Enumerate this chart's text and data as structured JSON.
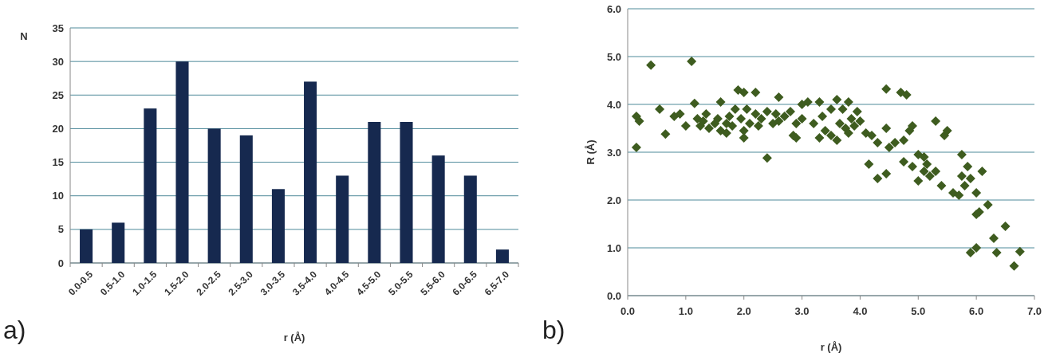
{
  "chart_data": [
    {
      "type": "bar",
      "categories": [
        "0.0-0.5",
        "0.5-1.0",
        "1.0-1.5",
        "1.5-2.0",
        "2.0-2.5",
        "2.5-3.0",
        "3.0-3.5",
        "3.5-4.0",
        "4.0-4.5",
        "4.5-5.0",
        "5.0-5.5",
        "5.5-6.0",
        "6.0-6.5",
        "6.5-7.0"
      ],
      "values": [
        5,
        6,
        23,
        30,
        20,
        19,
        11,
        27,
        13,
        21,
        21,
        16,
        13,
        2
      ],
      "color": "#16294f",
      "ylim": [
        0,
        35
      ],
      "yticks": [
        0,
        5,
        10,
        15,
        20,
        25,
        30,
        35
      ],
      "grid": "y",
      "xlabel": "r (Å)",
      "ylabel": "N",
      "annotations": [
        "a)"
      ]
    },
    {
      "type": "scatter",
      "marker": "diamond",
      "color": "#3e5c1f",
      "xlim": [
        0,
        7
      ],
      "ylim": [
        0,
        6
      ],
      "xticks": [
        {
          "value": 0,
          "label": "0.0"
        },
        {
          "value": 1,
          "label": "1.0"
        },
        {
          "value": 2,
          "label": "2.0"
        },
        {
          "value": 3,
          "label": "3.0"
        },
        {
          "value": 4,
          "label": "4.0"
        },
        {
          "value": 5,
          "label": "5.0"
        },
        {
          "value": 6,
          "label": "6.0"
        },
        {
          "value": 7,
          "label": "7.0"
        }
      ],
      "yticks": [
        {
          "value": 0,
          "label": "0.0"
        },
        {
          "value": 1,
          "label": "1.0"
        },
        {
          "value": 2,
          "label": "2.0"
        },
        {
          "value": 3,
          "label": "3.0"
        },
        {
          "value": 4,
          "label": "4.0"
        },
        {
          "value": 5,
          "label": "5.0"
        },
        {
          "value": 6,
          "label": "6.0"
        }
      ],
      "grid": "y",
      "xlabel": "r (Å)",
      "ylabel": "R (Å)",
      "annotations": [
        "b)"
      ],
      "x": [
        0.15,
        0.15,
        0.2,
        0.4,
        0.55,
        0.65,
        0.8,
        0.9,
        1.0,
        1.1,
        1.15,
        1.2,
        1.25,
        1.3,
        1.35,
        1.4,
        1.5,
        1.55,
        1.6,
        1.6,
        1.7,
        1.7,
        1.75,
        1.8,
        1.85,
        1.9,
        1.95,
        2.0,
        2.0,
        2.0,
        2.05,
        2.1,
        2.2,
        2.2,
        2.25,
        2.3,
        2.4,
        2.4,
        2.5,
        2.55,
        2.6,
        2.6,
        2.7,
        2.8,
        2.85,
        2.9,
        2.9,
        3.0,
        3.0,
        3.1,
        3.2,
        3.3,
        3.3,
        3.35,
        3.4,
        3.5,
        3.5,
        3.6,
        3.6,
        3.65,
        3.7,
        3.75,
        3.8,
        3.8,
        3.85,
        3.9,
        3.95,
        4.0,
        4.1,
        4.15,
        4.2,
        4.3,
        4.3,
        4.45,
        4.45,
        4.45,
        4.5,
        4.6,
        4.7,
        4.75,
        4.8,
        4.75,
        4.85,
        4.9,
        4.9,
        5.0,
        5.0,
        5.1,
        5.1,
        5.15,
        5.2,
        5.3,
        5.3,
        5.4,
        5.45,
        5.5,
        5.6,
        5.7,
        5.75,
        5.75,
        5.8,
        5.85,
        5.9,
        5.9,
        6.0,
        6.0,
        6.0,
        6.05,
        6.1,
        6.2,
        6.3,
        6.35,
        6.5,
        6.65,
        6.75
      ],
      "values": [
        3.1,
        3.75,
        3.65,
        4.82,
        3.9,
        3.38,
        3.75,
        3.8,
        3.55,
        4.9,
        4.02,
        3.7,
        3.55,
        3.65,
        3.8,
        3.5,
        3.6,
        3.7,
        4.05,
        3.45,
        3.6,
        3.4,
        3.75,
        3.55,
        3.9,
        4.3,
        3.7,
        4.25,
        3.45,
        3.3,
        3.9,
        3.6,
        4.25,
        3.8,
        3.55,
        3.7,
        2.88,
        3.85,
        3.6,
        3.8,
        4.15,
        3.65,
        3.75,
        3.85,
        3.35,
        3.3,
        3.6,
        4.0,
        3.7,
        4.05,
        3.6,
        4.05,
        3.3,
        3.75,
        3.45,
        3.9,
        3.35,
        4.1,
        3.25,
        3.6,
        3.9,
        3.5,
        4.05,
        3.4,
        3.7,
        3.55,
        3.85,
        3.65,
        3.4,
        2.75,
        3.35,
        2.45,
        3.2,
        4.32,
        2.55,
        3.5,
        3.1,
        3.2,
        4.25,
        3.25,
        4.2,
        2.8,
        3.45,
        2.7,
        3.55,
        2.95,
        2.4,
        2.6,
        2.9,
        2.75,
        2.5,
        3.65,
        2.6,
        2.3,
        3.35,
        3.45,
        2.15,
        2.1,
        2.95,
        2.5,
        2.3,
        2.7,
        2.45,
        0.9,
        2.15,
        1.0,
        1.7,
        1.75,
        2.6,
        1.9,
        1.2,
        0.9,
        1.45,
        0.62,
        0.92
      ]
    }
  ]
}
